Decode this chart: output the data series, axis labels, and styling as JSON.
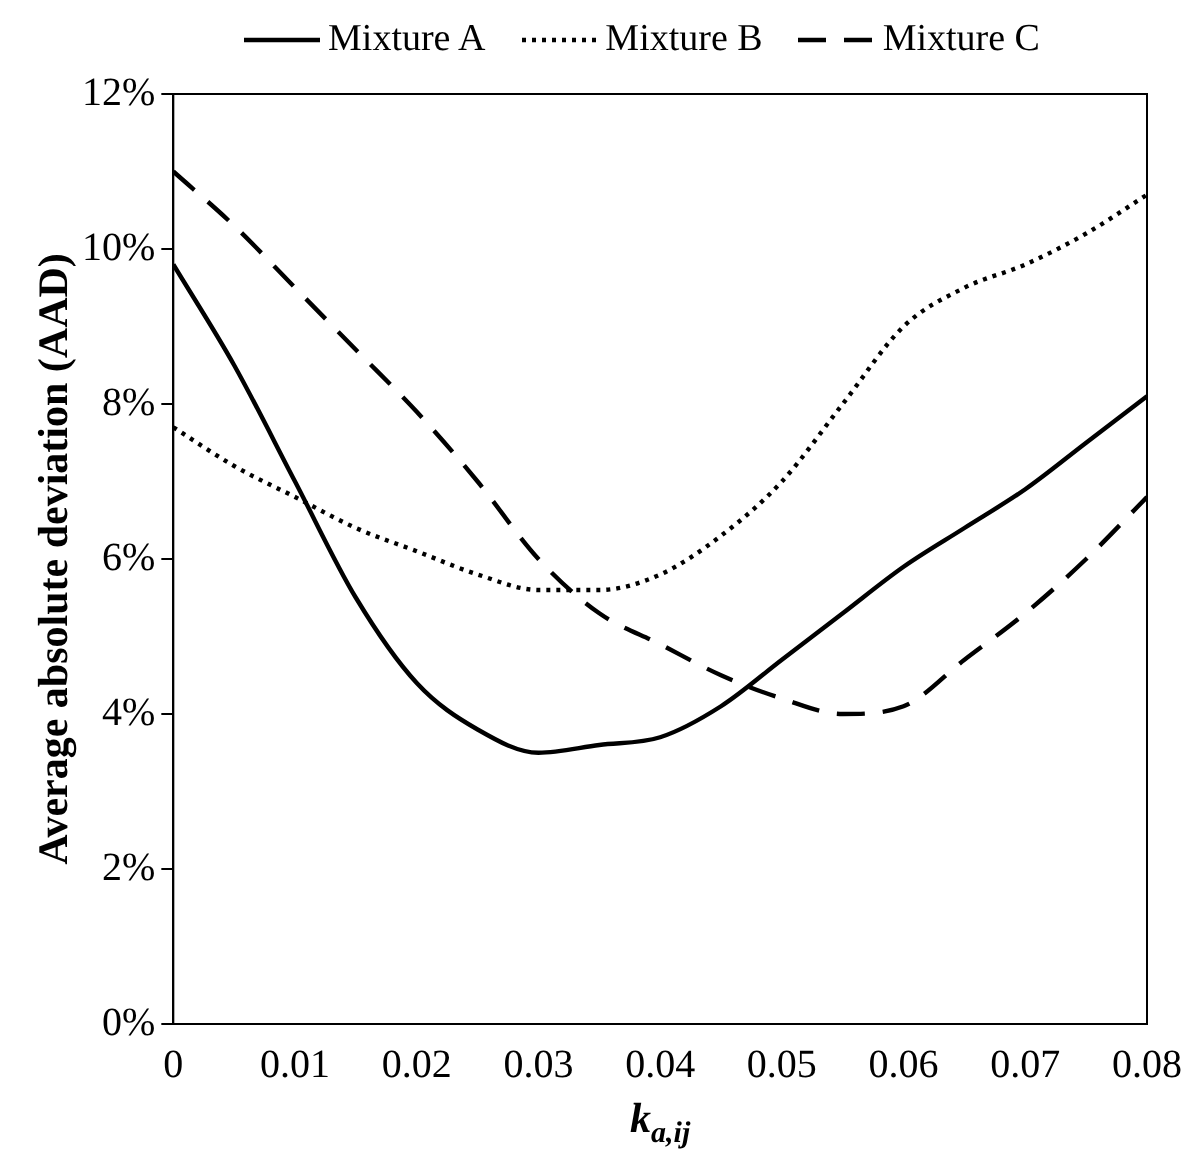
{
  "chart_data": {
    "type": "line",
    "xlabel": "k$_{a,ij}$",
    "ylabel": "Average absolute deviation (AAD)",
    "x": [
      0,
      0.005,
      0.01,
      0.015,
      0.02,
      0.025,
      0.03,
      0.035,
      0.04,
      0.045,
      0.05,
      0.055,
      0.06,
      0.065,
      0.07,
      0.075,
      0.08
    ],
    "series": [
      {
        "name": "Mixture A",
        "color": "#000000",
        "line_style": "solid",
        "values": [
          9.8,
          8.5,
          7.0,
          5.5,
          4.4,
          3.8,
          3.5,
          3.6,
          3.7,
          4.1,
          4.7,
          5.3,
          5.9,
          6.4,
          6.9,
          7.5,
          8.1
        ]
      },
      {
        "name": "Mixture B",
        "color": "#000000",
        "line_style": "dotted",
        "values": [
          7.7,
          7.2,
          6.8,
          6.4,
          6.1,
          5.8,
          5.6,
          5.6,
          5.8,
          6.3,
          7.0,
          8.0,
          9.0,
          9.5,
          9.8,
          10.2,
          10.7
        ]
      },
      {
        "name": "Mixture C",
        "color": "#000000",
        "line_style": "dashed",
        "values": [
          11.0,
          10.3,
          9.5,
          8.7,
          7.9,
          7.0,
          6.0,
          5.3,
          4.9,
          4.5,
          4.2,
          4.0,
          4.1,
          4.7,
          5.3,
          6.0,
          6.8
        ]
      }
    ],
    "xlim": [
      0,
      0.08
    ],
    "xticks": [
      0,
      0.01,
      0.02,
      0.03,
      0.04,
      0.05,
      0.06,
      0.07,
      0.08
    ],
    "ylim": [
      0,
      12
    ],
    "yticks": [
      {
        "value": 0,
        "label": "0%"
      },
      {
        "value": 2,
        "label": "2%"
      },
      {
        "value": 4,
        "label": "4%"
      },
      {
        "value": 6,
        "label": "6%"
      },
      {
        "value": 8,
        "label": "8%"
      },
      {
        "value": 10,
        "label": "10%"
      },
      {
        "value": 12,
        "label": "12%"
      }
    ],
    "legend": "top",
    "grid": false,
    "marker": "none"
  }
}
